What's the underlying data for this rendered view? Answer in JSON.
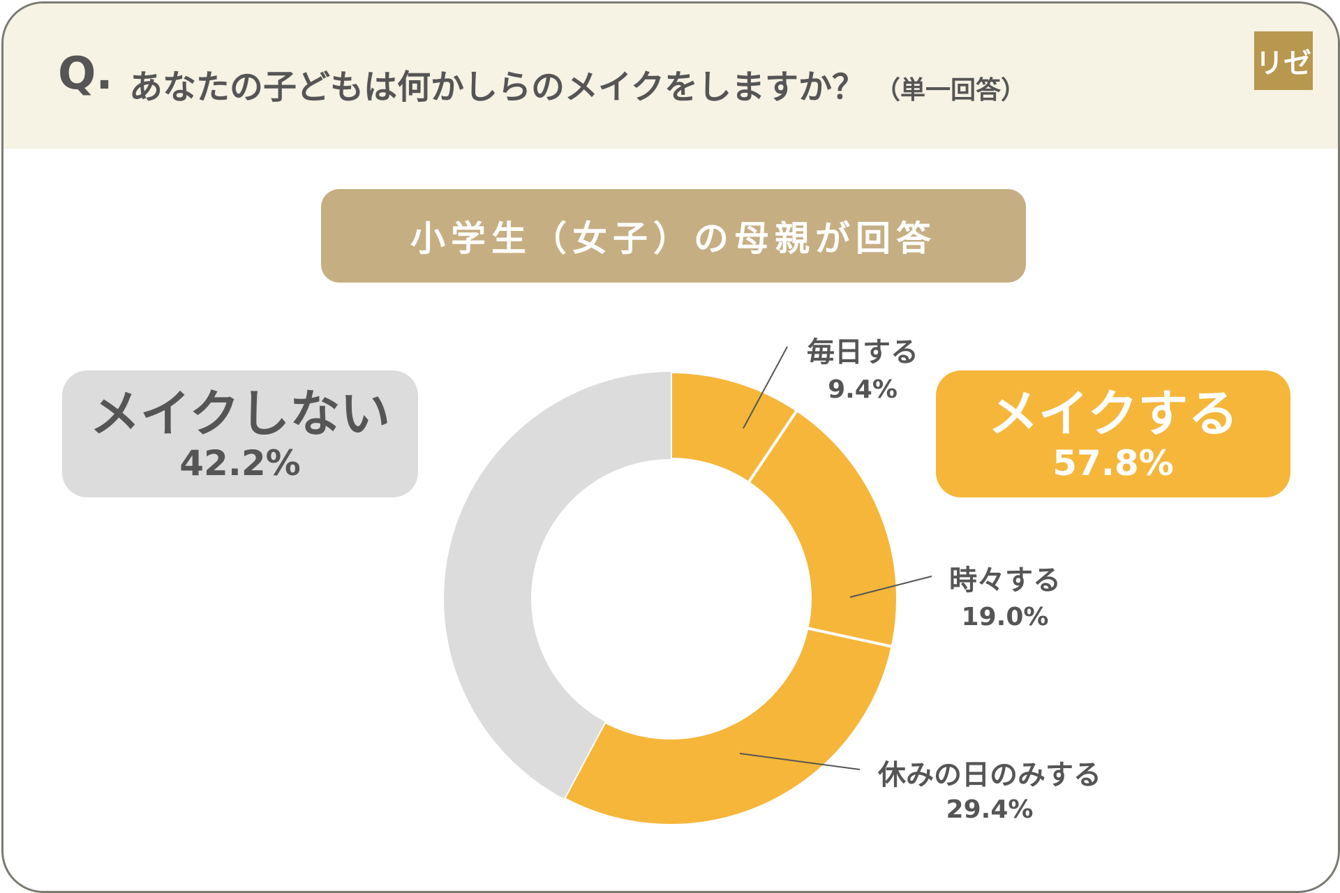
{
  "header": {
    "q_mark": "Q.",
    "question": "あなたの子どもは何かしらのメイクをしますか？",
    "note": "（単一回答）",
    "logo": "リゼ"
  },
  "subtitle": "小学生（女子）の母親が回答",
  "summary": {
    "no": {
      "label": "メイクしない",
      "value": "42.2%"
    },
    "yes": {
      "label": "メイクする",
      "value": "57.8%"
    }
  },
  "colors": {
    "make": "#f5b63a",
    "nomake": "#dcdcdc",
    "subtitle_bg": "#c6ae83",
    "header_bg": "#f6f2e4"
  },
  "chart_data": {
    "type": "pie",
    "donut": true,
    "unit": "%",
    "slices": [
      {
        "label": "毎日する",
        "value": 9.4,
        "display": "9.4%",
        "group": "make"
      },
      {
        "label": "時々する",
        "value": 19.0,
        "display": "19.0%",
        "group": "make"
      },
      {
        "label": "休みの日のみする",
        "value": 29.4,
        "display": "29.4%",
        "group": "make"
      },
      {
        "label": "メイクしない",
        "value": 42.2,
        "display": "42.2%",
        "group": "nomake"
      }
    ]
  }
}
